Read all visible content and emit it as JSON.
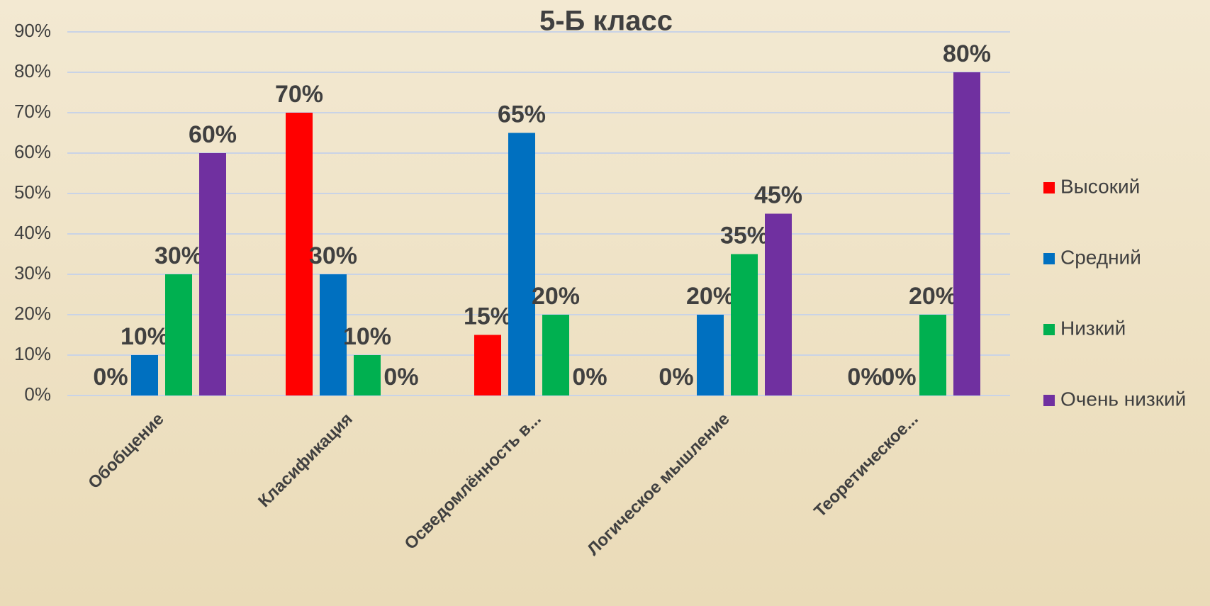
{
  "chart_data": {
    "type": "bar",
    "title": "5-Б класс",
    "categories": [
      "Обобщение",
      "Класификация",
      "Осведомлённость в...",
      "Логическое мышление",
      "Теоретическое..."
    ],
    "series": [
      {
        "name": "Высокий",
        "color": "#ff0000",
        "values": [
          0,
          70,
          15,
          0,
          0
        ],
        "value_labels": [
          "0%",
          "70%",
          "15%",
          "0%",
          "0%"
        ]
      },
      {
        "name": "Средний",
        "color": "#0070c0",
        "values": [
          10,
          30,
          65,
          20,
          0
        ],
        "value_labels": [
          "10%",
          "30%",
          "65%",
          "20%",
          "0%"
        ]
      },
      {
        "name": "Низкий",
        "color": "#00b050",
        "values": [
          30,
          10,
          20,
          35,
          20
        ],
        "value_labels": [
          "30%",
          "10%",
          "20%",
          "35%",
          "20%"
        ]
      },
      {
        "name": "Очень низкий",
        "color": "#7030a0",
        "values": [
          60,
          0,
          0,
          45,
          80
        ],
        "value_labels": [
          "60%",
          "0%",
          "0%",
          "45%",
          "80%"
        ]
      }
    ],
    "ylim": [
      0,
      90
    ],
    "yticks": [
      {
        "value": 0,
        "label": "0%"
      },
      {
        "value": 10,
        "label": "10%"
      },
      {
        "value": 20,
        "label": "20%"
      },
      {
        "value": 30,
        "label": "30%"
      },
      {
        "value": 40,
        "label": "40%"
      },
      {
        "value": 50,
        "label": "50%"
      },
      {
        "value": 60,
        "label": "60%"
      },
      {
        "value": 70,
        "label": "70%"
      },
      {
        "value": 80,
        "label": "80%"
      },
      {
        "value": 90,
        "label": "90%"
      }
    ],
    "grid": true,
    "legend": "right"
  }
}
